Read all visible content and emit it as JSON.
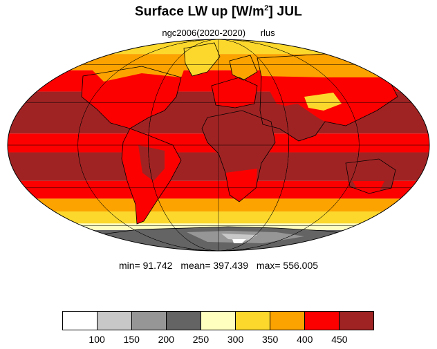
{
  "title": "Surface LW up [W/m",
  "title_sup": "2",
  "title_tail": "]  JUL",
  "subtitle": {
    "run": "ngc2006(2020-2020)",
    "var": "rlus"
  },
  "stats": {
    "min": "min=  91.742",
    "mean": "mean= 397.439",
    "max": "max= 556.005"
  },
  "colorbar": {
    "colors": [
      "#ffffff",
      "#c8c8c8",
      "#969696",
      "#646464",
      "#ffffc0",
      "#fcd82c",
      "#fca300",
      "#fc0000",
      "#a02323"
    ],
    "labels": [
      "100",
      "150",
      "200",
      "250",
      "300",
      "350",
      "400",
      "450"
    ]
  },
  "map": {
    "projection": "Mollweide",
    "graticule_lat": [
      -60,
      -30,
      0,
      30,
      60
    ],
    "graticule_lon": [
      -120,
      -60,
      0,
      60,
      120
    ],
    "bands": [
      {
        "lat_min": 70,
        "lat_max": 90,
        "color": "#fcd82c"
      },
      {
        "lat_min": 55,
        "lat_max": 70,
        "color": "#fca300"
      },
      {
        "lat_min": 38,
        "lat_max": 55,
        "color": "#fc0000"
      },
      {
        "lat_min": 8,
        "lat_max": 38,
        "color": "#a02323"
      },
      {
        "lat_min": -5,
        "lat_max": 8,
        "color": "#fc0000"
      },
      {
        "lat_min": -25,
        "lat_max": -5,
        "color": "#a02323"
      },
      {
        "lat_min": -38,
        "lat_max": -25,
        "color": "#fc0000"
      },
      {
        "lat_min": -48,
        "lat_max": -38,
        "color": "#fca300"
      },
      {
        "lat_min": -58,
        "lat_max": -48,
        "color": "#fcd82c"
      },
      {
        "lat_min": -64,
        "lat_max": -58,
        "color": "#ffffc0"
      },
      {
        "lat_min": -90,
        "lat_max": -64,
        "color": "#646464"
      }
    ]
  }
}
